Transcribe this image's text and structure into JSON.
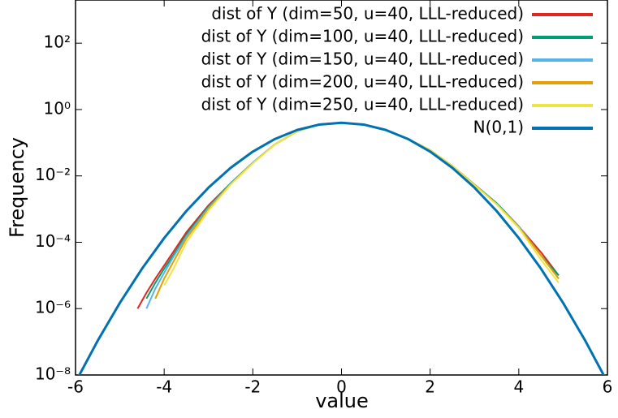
{
  "chart_data": {
    "type": "line",
    "xlabel": "value",
    "ylabel": "Frequency",
    "log_y": true,
    "legend": "upper right",
    "xlim": [
      -6,
      6
    ],
    "xticks": [
      -6,
      -4,
      -2,
      0,
      2,
      4,
      6
    ],
    "ylim": [
      1e-08,
      2000
    ],
    "yticks": [
      {
        "value": 1e-08,
        "label": "10⁻⁸"
      },
      {
        "value": 1e-06,
        "label": "10⁻⁶"
      },
      {
        "value": 0.0001,
        "label": "10⁻⁴"
      },
      {
        "value": 0.01,
        "label": "10⁻²"
      },
      {
        "value": 1,
        "label": "10⁰"
      },
      {
        "value": 100,
        "label": "10²"
      }
    ],
    "x": [
      -4.6,
      -4.4,
      -4.2,
      -4.0,
      -3.8,
      -3.5,
      -3.0,
      -2.5,
      -2.0,
      -1.5,
      -1.0,
      -0.5,
      0,
      0.5,
      1.0,
      1.5,
      2.0,
      2.5,
      3.0,
      3.5,
      4.0,
      4.5,
      4.9
    ],
    "series": [
      {
        "name": "dist of Y (dim=50, u=40, LLL-reduced)",
        "color": "#e3261c",
        "values": [
          1e-06,
          3e-06,
          8e-06,
          2e-05,
          5e-05,
          0.0002,
          0.0013,
          0.006,
          0.025,
          0.09,
          0.22,
          0.36,
          0.4,
          0.35,
          0.24,
          0.13,
          0.06,
          0.02,
          0.0055,
          0.0015,
          0.0003,
          5e-05,
          1e-05
        ]
      },
      {
        "name": "dist of Y (dim=100, u=40, LLL-reduced)",
        "color": "#009e73",
        "values": [
          null,
          2e-06,
          6e-06,
          1.6e-05,
          4e-05,
          0.00017,
          0.0012,
          0.006,
          0.025,
          0.09,
          0.22,
          0.36,
          0.4,
          0.35,
          0.24,
          0.13,
          0.06,
          0.02,
          0.0055,
          0.0015,
          0.0003,
          4e-05,
          1e-05
        ]
      },
      {
        "name": "dist of Y (dim=150, u=40, LLL-reduced)",
        "color": "#56b4e9",
        "values": [
          null,
          1e-06,
          4e-06,
          1.2e-05,
          3.5e-05,
          0.00015,
          0.0011,
          0.0058,
          0.025,
          0.09,
          0.22,
          0.36,
          0.4,
          0.35,
          0.24,
          0.13,
          0.06,
          0.02,
          0.0054,
          0.0014,
          0.0003,
          4e-05,
          8e-06
        ]
      },
      {
        "name": "dist of Y (dim=200, u=40, LLL-reduced)",
        "color": "#e69f00",
        "values": [
          null,
          null,
          2e-06,
          8e-06,
          2.5e-05,
          0.00013,
          0.001,
          0.0056,
          0.024,
          0.09,
          0.22,
          0.36,
          0.4,
          0.35,
          0.24,
          0.13,
          0.06,
          0.02,
          0.0054,
          0.0014,
          0.00028,
          4e-05,
          8e-06
        ]
      },
      {
        "name": "dist of Y (dim=250, u=40, LLL-reduced)",
        "color": "#f0e442",
        "values": [
          null,
          null,
          null,
          5e-06,
          1.5e-05,
          0.0001,
          0.0009,
          0.0055,
          0.024,
          0.09,
          0.22,
          0.36,
          0.4,
          0.35,
          0.24,
          0.13,
          0.06,
          0.02,
          0.0053,
          0.0014,
          0.00027,
          3e-05,
          6e-06
        ]
      },
      {
        "name": "N(0,1)",
        "color": "#0072b2",
        "x": [
          -6,
          -5.5,
          -5,
          -4.5,
          -4,
          -3.5,
          -3,
          -2.5,
          -2,
          -1.5,
          -1,
          -0.5,
          0,
          0.5,
          1,
          1.5,
          2,
          2.5,
          3,
          3.5,
          4,
          4.5,
          5,
          5.5,
          6
        ],
        "values": [
          6.076e-09,
          1.077e-07,
          1.487e-06,
          1.598e-05,
          0.0001338,
          0.0008727,
          0.004432,
          0.01753,
          0.05399,
          0.1295,
          0.242,
          0.3521,
          0.3989,
          0.3521,
          0.242,
          0.1295,
          0.05399,
          0.01753,
          0.004432,
          0.0008727,
          0.0001338,
          1.598e-05,
          1.487e-06,
          1.077e-07,
          6.076e-09
        ]
      }
    ]
  }
}
